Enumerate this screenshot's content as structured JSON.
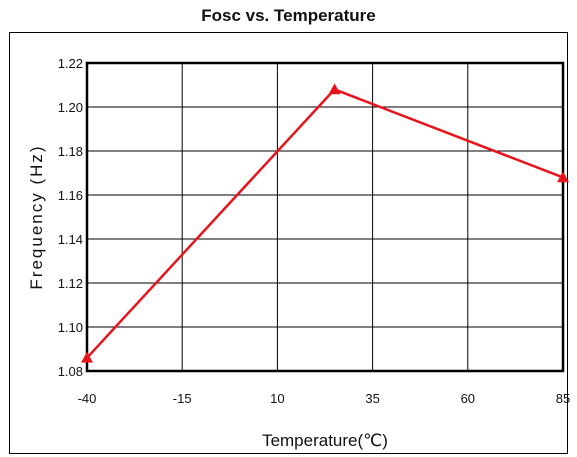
{
  "chart_data": {
    "type": "line",
    "title": "Fosc vs. Temperature",
    "xlabel": "Temperature(℃)",
    "ylabel": "Frequency (Hz)",
    "x_ticks": [
      "-40",
      "-15",
      "10",
      "35",
      "60",
      "85"
    ],
    "y_ticks": [
      "1.08",
      "1.10",
      "1.12",
      "1.14",
      "1.16",
      "1.18",
      "1.20",
      "1.22"
    ],
    "xlim": [
      -40,
      85
    ],
    "ylim": [
      1.08,
      1.22
    ],
    "grid": true,
    "series": [
      {
        "color": "#e8141b",
        "marker": "triangle",
        "x": [
          -40,
          25,
          85
        ],
        "y": [
          1.086,
          1.208,
          1.168
        ]
      }
    ]
  }
}
